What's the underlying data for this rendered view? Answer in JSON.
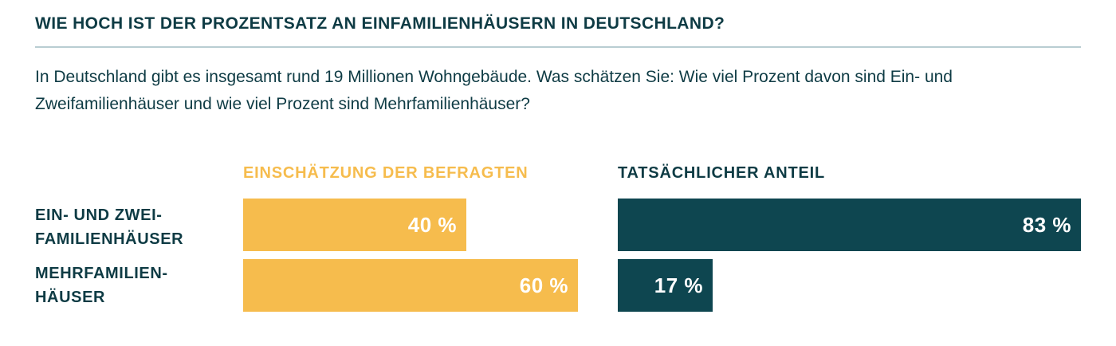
{
  "title": "WIE HOCH IST DER PROZENTSATZ AN EINFAMILIENHÄUSERN IN DEUTSCHLAND?",
  "question": "In Deutschland gibt es insgesamt rund 19 Millionen Wohngebäude. Was schätzen Sie: Wie viel Prozent davon sind Ein- und Zweifamilienhäuser und wie viel Prozent sind Mehrfamilienhäuser?",
  "colors": {
    "estimate": "#f6bc4d",
    "actual": "#0e4650",
    "text": "#0e3b44",
    "rule": "#b9cdd2"
  },
  "chart_data": {
    "type": "bar",
    "orientation": "horizontal",
    "categories": [
      "EIN- UND ZWEI-FAMILIENHÄUSER",
      "MEHRFAMILIEN-HÄUSER"
    ],
    "category_lines": [
      [
        "EIN- UND ZWEI-",
        "FAMILIENHÄUSER"
      ],
      [
        "MEHRFAMILIEN-",
        "HÄUSER"
      ]
    ],
    "series": [
      {
        "name": "EINSCHÄTZUNG DER BEFRAGTEN",
        "values": [
          40,
          60
        ],
        "labels": [
          "40 %",
          "60 %"
        ]
      },
      {
        "name": "TATSÄCHLICHER ANTEIL",
        "values": [
          83,
          17
        ],
        "labels": [
          "83 %",
          "17 %"
        ]
      }
    ],
    "unit": "%",
    "xlim": [
      0,
      100
    ]
  }
}
